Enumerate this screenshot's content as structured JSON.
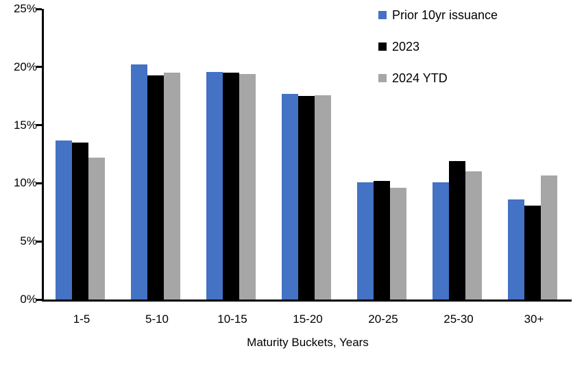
{
  "chart_data": {
    "type": "bar",
    "title": "",
    "categories": [
      "1-5",
      "5-10",
      "10-15",
      "15-20",
      "20-25",
      "25-30",
      "30+"
    ],
    "series": [
      {
        "name": "Prior 10yr issuance",
        "color": "#4472C4",
        "values": [
          13.7,
          20.2,
          19.6,
          17.7,
          10.1,
          10.1,
          8.6
        ]
      },
      {
        "name": "2023",
        "color": "#000000",
        "values": [
          13.5,
          19.3,
          19.5,
          17.5,
          10.2,
          11.9,
          8.1
        ]
      },
      {
        "name": "2024 YTD",
        "color": "#A6A6A6",
        "values": [
          12.2,
          19.5,
          19.4,
          17.6,
          9.6,
          11.0,
          10.7
        ]
      }
    ],
    "xlabel": "Maturity Buckets, Years",
    "ylabel": "",
    "ylim": [
      0,
      25
    ],
    "yticks": [
      {
        "value": 0,
        "label": "0%"
      },
      {
        "value": 5,
        "label": "5%"
      },
      {
        "value": 10,
        "label": "10%"
      },
      {
        "value": 15,
        "label": "15%"
      },
      {
        "value": 20,
        "label": "20%"
      },
      {
        "value": 25,
        "label": "25%"
      }
    ],
    "grid": false,
    "legend_position": "top-right",
    "axis_color": "#000000"
  }
}
